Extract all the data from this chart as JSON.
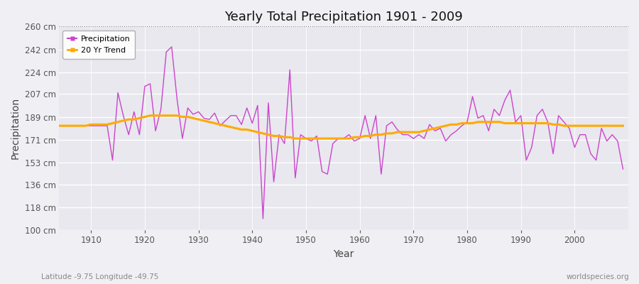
{
  "title": "Yearly Total Precipitation 1901 - 2009",
  "xlabel": "Year",
  "ylabel": "Precipitation",
  "subtitle_left": "Latitude -9.75 Longitude -49.75",
  "subtitle_right": "worldspecies.org",
  "bg_color": "#f0f0f4",
  "plot_bg_color": "#e8e8ee",
  "line_color": "#cc44cc",
  "trend_color": "#ffaa00",
  "ylim": [
    100,
    260
  ],
  "yticks": [
    100,
    118,
    136,
    153,
    171,
    189,
    207,
    224,
    242,
    260
  ],
  "xlim_left": 1904,
  "xlim_right": 2010,
  "years": [
    1901,
    1902,
    1903,
    1904,
    1905,
    1906,
    1907,
    1908,
    1909,
    1910,
    1911,
    1912,
    1913,
    1914,
    1915,
    1916,
    1917,
    1918,
    1919,
    1920,
    1921,
    1922,
    1923,
    1924,
    1925,
    1926,
    1927,
    1928,
    1929,
    1930,
    1931,
    1932,
    1933,
    1934,
    1935,
    1936,
    1937,
    1938,
    1939,
    1940,
    1941,
    1942,
    1943,
    1944,
    1945,
    1946,
    1947,
    1948,
    1949,
    1950,
    1951,
    1952,
    1953,
    1954,
    1955,
    1956,
    1957,
    1958,
    1959,
    1960,
    1961,
    1962,
    1963,
    1964,
    1965,
    1966,
    1967,
    1968,
    1969,
    1970,
    1971,
    1972,
    1973,
    1974,
    1975,
    1976,
    1977,
    1978,
    1979,
    1980,
    1981,
    1982,
    1983,
    1984,
    1985,
    1986,
    1987,
    1988,
    1989,
    1990,
    1991,
    1992,
    1993,
    1994,
    1995,
    1996,
    1997,
    1998,
    1999,
    2000,
    2001,
    2002,
    2003,
    2004,
    2005,
    2006,
    2007,
    2008,
    2009
  ],
  "precipitation": [
    182,
    182,
    182,
    182,
    182,
    182,
    182,
    182,
    182,
    182,
    182,
    182,
    182,
    155,
    208,
    190,
    175,
    193,
    175,
    213,
    215,
    178,
    195,
    240,
    244,
    203,
    172,
    196,
    191,
    193,
    188,
    187,
    192,
    182,
    186,
    190,
    190,
    183,
    196,
    184,
    198,
    109,
    200,
    138,
    175,
    168,
    226,
    141,
    175,
    172,
    170,
    174,
    146,
    144,
    168,
    172,
    172,
    175,
    170,
    172,
    190,
    172,
    190,
    144,
    182,
    185,
    179,
    175,
    175,
    172,
    175,
    172,
    183,
    178,
    180,
    170,
    175,
    178,
    182,
    185,
    205,
    188,
    190,
    178,
    195,
    190,
    202,
    210,
    185,
    190,
    155,
    165,
    190,
    195,
    185,
    160,
    190,
    185,
    180,
    165,
    175,
    175,
    160,
    155,
    180,
    170,
    175,
    170,
    148
  ],
  "trend": [
    182,
    182,
    182,
    182,
    182,
    182,
    182,
    182,
    182,
    183,
    183,
    183,
    183,
    184,
    185,
    186,
    187,
    187,
    188,
    189,
    190,
    190,
    190,
    190,
    190,
    190,
    189,
    189,
    188,
    187,
    186,
    185,
    184,
    183,
    182,
    181,
    180,
    179,
    179,
    178,
    177,
    176,
    175,
    174,
    174,
    173,
    173,
    172,
    172,
    172,
    172,
    172,
    172,
    172,
    172,
    172,
    172,
    172,
    173,
    173,
    174,
    174,
    175,
    175,
    176,
    176,
    177,
    177,
    177,
    177,
    177,
    178,
    179,
    180,
    181,
    182,
    183,
    183,
    184,
    184,
    184,
    185,
    185,
    185,
    185,
    185,
    184,
    184,
    184,
    184,
    184,
    184,
    184,
    184,
    184,
    183,
    183,
    182,
    182,
    182,
    182,
    182,
    182,
    182,
    182,
    182,
    182,
    182,
    182
  ]
}
